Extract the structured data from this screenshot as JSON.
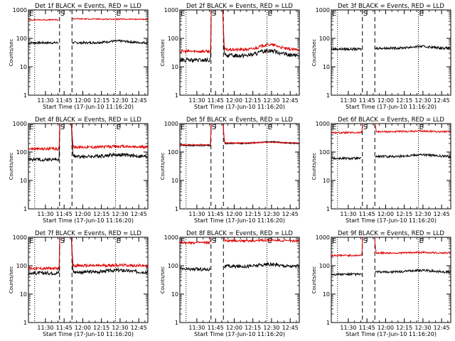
{
  "figure": {
    "x_tick_labels": [
      "11:30",
      "11:45",
      "12:00",
      "12:15",
      "12:30",
      "12:45"
    ],
    "x_axis_label": "Start Time (17-Jun-10 11:16:20)",
    "y_axis_label": "Counts/sec",
    "y_tick_labels": [
      "1",
      "10",
      "100",
      "1000"
    ],
    "marker_S": "S",
    "marker_E": "E",
    "marker_E_left": "E",
    "colors": {
      "events": "#000000",
      "lld": "#e00000",
      "axis": "#000000",
      "background": "#ffffff"
    }
  },
  "chart_data": [
    {
      "type": "line",
      "title": "Det 1f BLACK = Events, RED = LLD",
      "ylabel": "Counts/sec",
      "xlabel": "Start Time (17-Jun-10 11:16:20)",
      "xlim_minutes": [
        0,
        96
      ],
      "ylim": [
        1,
        1000
      ],
      "y_scale": "log",
      "gap_minutes": [
        25,
        35
      ],
      "dashed_lines_minutes": [
        25,
        35
      ],
      "dotted_lines_minutes": [
        5,
        70
      ],
      "series": [
        {
          "name": "BLACK = Events",
          "color": "#000000",
          "pre": 70,
          "post": 70,
          "noise": 0.04,
          "trend": "flat"
        },
        {
          "name": "RED = LLD",
          "color": "#e00000",
          "pre": 450,
          "post": 470,
          "noise": 0.02,
          "trend": "decay",
          "post_start": 900,
          "spike": false
        }
      ]
    },
    {
      "type": "line",
      "title": "Det 2f BLACK = Events, RED = LLD",
      "ylabel": "Counts/sec",
      "xlabel": "Start Time (17-Jun-10 11:16:20)",
      "xlim_minutes": [
        0,
        96
      ],
      "ylim": [
        1,
        1000
      ],
      "y_scale": "log",
      "gap_minutes": [
        25,
        35
      ],
      "dashed_lines_minutes": [
        25,
        35
      ],
      "dotted_lines_minutes": [
        5,
        70
      ],
      "series": [
        {
          "name": "BLACK = Events",
          "color": "#000000",
          "pre": 17,
          "post": 25,
          "noise": 0.07,
          "trend": "bump",
          "spike": true
        },
        {
          "name": "RED = LLD",
          "color": "#e00000",
          "pre": 35,
          "post": 40,
          "noise": 0.05,
          "trend": "bump",
          "spike": true
        }
      ]
    },
    {
      "type": "line",
      "title": "Det 3f BLACK = Events, RED = LLD",
      "ylabel": "Counts/sec",
      "xlabel": "Start Time (17-Jun-10 11:16:20)",
      "xlim_minutes": [
        0,
        96
      ],
      "ylim": [
        1,
        1000
      ],
      "y_scale": "log",
      "gap_minutes": [
        25,
        35
      ],
      "dashed_lines_minutes": [
        25,
        35
      ],
      "dotted_lines_minutes": [
        5,
        70
      ],
      "series": [
        {
          "name": "BLACK = Events",
          "color": "#000000",
          "pre": 42,
          "post": 45,
          "noise": 0.04,
          "trend": "flat"
        }
      ]
    },
    {
      "type": "line",
      "title": "Det 4f BLACK = Events, RED = LLD",
      "ylabel": "Counts/sec",
      "xlabel": "Start Time (17-Jun-10 11:16:20)",
      "xlim_minutes": [
        0,
        96
      ],
      "ylim": [
        1,
        1000
      ],
      "y_scale": "log",
      "gap_minutes": [
        25,
        35
      ],
      "dashed_lines_minutes": [
        25,
        35
      ],
      "dotted_lines_minutes": [
        5,
        70
      ],
      "series": [
        {
          "name": "BLACK = Events",
          "color": "#000000",
          "pre": 55,
          "post": 70,
          "noise": 0.06,
          "trend": "flat",
          "spike": true
        },
        {
          "name": "RED = LLD",
          "color": "#e00000",
          "pre": 130,
          "post": 150,
          "noise": 0.05,
          "trend": "flat",
          "spike": true
        }
      ]
    },
    {
      "type": "line",
      "title": "Det 5f BLACK = Events, RED = LLD",
      "ylabel": "Counts/sec",
      "xlabel": "Start Time (17-Jun-10 11:16:20)",
      "xlim_minutes": [
        0,
        96
      ],
      "ylim": [
        1,
        1000
      ],
      "y_scale": "log",
      "gap_minutes": [
        25,
        35
      ],
      "dashed_lines_minutes": [
        25,
        35
      ],
      "dotted_lines_minutes": [
        5,
        70
      ],
      "series": [
        {
          "name": "BLACK = Events",
          "color": "#000000",
          "pre": 170,
          "post": 200,
          "noise": 0.02,
          "trend": "flat",
          "spike": true
        },
        {
          "name": "RED = LLD",
          "color": "#e00000",
          "pre": 180,
          "post": 210,
          "noise": 0.02,
          "trend": "flat",
          "spike": true
        }
      ]
    },
    {
      "type": "line",
      "title": "Det 6f BLACK = Events, RED = LLD",
      "ylabel": "Counts/sec",
      "xlabel": "Start Time (17-Jun-10 11:16:20)",
      "xlim_minutes": [
        0,
        96
      ],
      "ylim": [
        1,
        1000
      ],
      "y_scale": "log",
      "gap_minutes": [
        25,
        35
      ],
      "dashed_lines_minutes": [
        25,
        35
      ],
      "dotted_lines_minutes": [
        5,
        70
      ],
      "series": [
        {
          "name": "BLACK = Events",
          "color": "#000000",
          "pre": 60,
          "post": 70,
          "noise": 0.04,
          "trend": "flat"
        },
        {
          "name": "RED = LLD",
          "color": "#e00000",
          "pre": 480,
          "post": 520,
          "noise": 0.03,
          "trend": "flat",
          "spike": true
        }
      ]
    },
    {
      "type": "line",
      "title": "Det 7f BLACK = Events, RED = LLD",
      "ylabel": "Counts/sec",
      "xlabel": "Start Time (17-Jun-10 11:16:20)",
      "xlim_minutes": [
        0,
        96
      ],
      "ylim": [
        1,
        1000
      ],
      "y_scale": "log",
      "gap_minutes": [
        25,
        35
      ],
      "dashed_lines_minutes": [
        25,
        35
      ],
      "dotted_lines_minutes": [
        5,
        70
      ],
      "series": [
        {
          "name": "BLACK = Events",
          "color": "#000000",
          "pre": 55,
          "post": 60,
          "noise": 0.06,
          "trend": "flat",
          "spike": true
        },
        {
          "name": "RED = LLD",
          "color": "#e00000",
          "pre": 80,
          "post": 100,
          "noise": 0.05,
          "trend": "flat",
          "spike": true
        }
      ]
    },
    {
      "type": "line",
      "title": "Det 8f BLACK = Events, RED = LLD",
      "ylabel": "Counts/sec",
      "xlabel": "Start Time (17-Jun-10 11:16:20)",
      "xlim_minutes": [
        0,
        96
      ],
      "ylim": [
        1,
        1000
      ],
      "y_scale": "log",
      "gap_minutes": [
        25,
        35
      ],
      "dashed_lines_minutes": [
        25,
        35
      ],
      "dotted_lines_minutes": [
        5,
        70
      ],
      "series": [
        {
          "name": "BLACK = Events",
          "color": "#000000",
          "pre": 75,
          "post": 95,
          "noise": 0.06,
          "trend": "flat"
        },
        {
          "name": "RED = LLD",
          "color": "#e00000",
          "pre": 650,
          "post": 750,
          "noise": 0.04,
          "trend": "flat",
          "spike": true
        }
      ]
    },
    {
      "type": "line",
      "title": "Det 9f BLACK = Events, RED = LLD",
      "ylabel": "Counts/sec",
      "xlabel": "Start Time (17-Jun-10 11:16:20)",
      "xlim_minutes": [
        0,
        96
      ],
      "ylim": [
        1,
        1000
      ],
      "y_scale": "log",
      "gap_minutes": [
        25,
        35
      ],
      "dashed_lines_minutes": [
        25,
        35
      ],
      "dotted_lines_minutes": [
        5,
        70
      ],
      "series": [
        {
          "name": "BLACK = Events",
          "color": "#000000",
          "pre": 50,
          "post": 60,
          "noise": 0.04,
          "trend": "flat"
        },
        {
          "name": "RED = LLD",
          "color": "#e00000",
          "pre": 230,
          "post": 280,
          "noise": 0.03,
          "trend": "flat",
          "spike": true
        }
      ]
    }
  ]
}
